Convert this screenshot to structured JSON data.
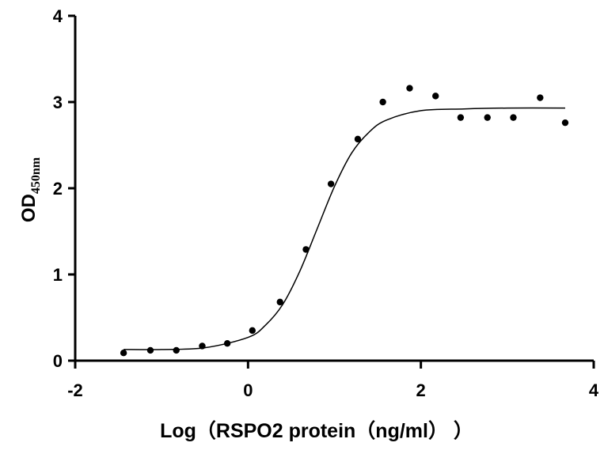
{
  "chart_data": {
    "type": "scatter",
    "x_label": "Log（RSPO2 protein（ng/ml） ）",
    "y_label": "OD",
    "y_label_subscript": "450nm",
    "points": {
      "color": "#000000",
      "x": [
        -1.44,
        -1.13,
        -0.83,
        -0.53,
        -0.24,
        0.05,
        0.37,
        0.67,
        0.96,
        1.27,
        1.56,
        1.87,
        2.17,
        2.46,
        2.77,
        3.07,
        3.38,
        3.67
      ],
      "y": [
        0.09,
        0.12,
        0.12,
        0.17,
        0.2,
        0.35,
        0.68,
        1.29,
        2.05,
        2.57,
        3.0,
        3.16,
        3.07,
        2.82,
        2.82,
        2.82,
        3.05,
        2.76
      ]
    },
    "fit": {
      "color": "#000000",
      "x": [
        -1.44,
        -1,
        -0.5,
        0,
        0.2,
        0.4,
        0.6,
        0.8,
        1.0,
        1.2,
        1.4,
        1.6,
        2.0,
        2.5,
        3.0,
        3.67
      ],
      "y": [
        0.13,
        0.13,
        0.15,
        0.27,
        0.41,
        0.65,
        1.04,
        1.53,
        2.02,
        2.41,
        2.65,
        2.79,
        2.9,
        2.92,
        2.93,
        2.93
      ]
    },
    "xlim": [
      -2,
      4
    ],
    "xticks": [
      -2,
      0,
      2,
      4
    ],
    "ylim": [
      0,
      4
    ],
    "yticks": [
      0,
      1,
      2,
      3,
      4
    ]
  }
}
